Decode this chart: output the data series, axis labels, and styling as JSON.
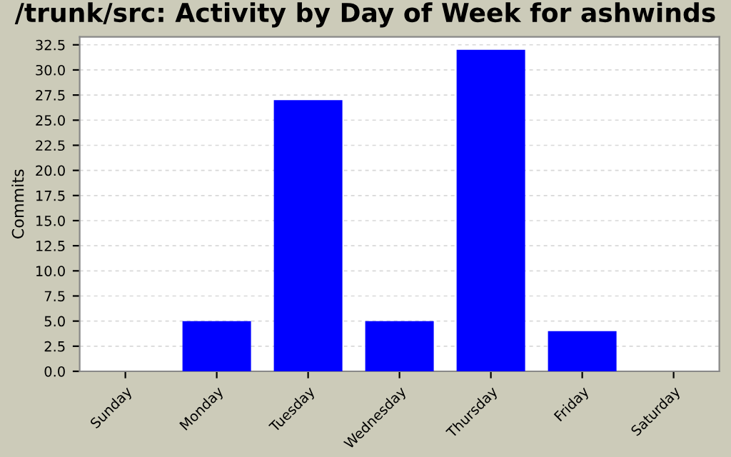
{
  "chart_data": {
    "type": "bar",
    "title": "/trunk/src: Activity by Day of Week for ashwinds",
    "ylabel": "Commits",
    "categories": [
      "Sunday",
      "Monday",
      "Tuesday",
      "Wednesday",
      "Thursday",
      "Friday",
      "Saturday"
    ],
    "values": [
      0,
      5,
      27,
      5,
      32,
      4,
      0
    ],
    "color": "#0000ff",
    "ylim": [
      0,
      33.3
    ],
    "yticks": [
      {
        "value": 0,
        "label": "0.0"
      },
      {
        "value": 2.5,
        "label": "2.5"
      },
      {
        "value": 5,
        "label": "5.0"
      },
      {
        "value": 7.5,
        "label": "7.5"
      },
      {
        "value": 10,
        "label": "10.0"
      },
      {
        "value": 12.5,
        "label": "12.5"
      },
      {
        "value": 15,
        "label": "15.0"
      },
      {
        "value": 17.5,
        "label": "17.5"
      },
      {
        "value": 20,
        "label": "20.0"
      },
      {
        "value": 22.5,
        "label": "22.5"
      },
      {
        "value": 25,
        "label": "25.0"
      },
      {
        "value": 27.5,
        "label": "27.5"
      },
      {
        "value": 30,
        "label": "30.0"
      },
      {
        "value": 32.5,
        "label": "32.5"
      }
    ],
    "grid": "y"
  }
}
